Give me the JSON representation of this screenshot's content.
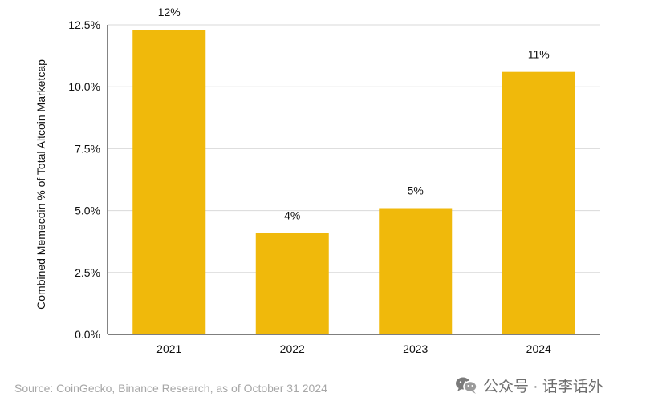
{
  "chart_data": {
    "type": "bar",
    "title": "",
    "xlabel": "",
    "ylabel": "Combined Memecoin % of Total Altcoin Marketcap",
    "categories": [
      "2021",
      "2022",
      "2023",
      "2024"
    ],
    "values": [
      12.3,
      4.1,
      5.1,
      10.6
    ],
    "data_labels": [
      "12%",
      "4%",
      "5%",
      "11%"
    ],
    "ylim": [
      0,
      12.5
    ],
    "yticks": [
      0,
      2.5,
      5,
      7.5,
      10,
      12.5
    ],
    "ytick_labels": [
      "0.0%",
      "2.5%",
      "5.0%",
      "7.5%",
      "10.0%",
      "12.5%"
    ],
    "grid": true,
    "bar_color": "#f0b90b",
    "grid_color": "#d9d9d9",
    "axis_color": "#333333"
  },
  "footer": {
    "source": "Source: CoinGecko, Binance Research, as of October 31 2024"
  },
  "watermark": {
    "icon": "wechat-icon",
    "text": "公众号 · 话李话外"
  }
}
